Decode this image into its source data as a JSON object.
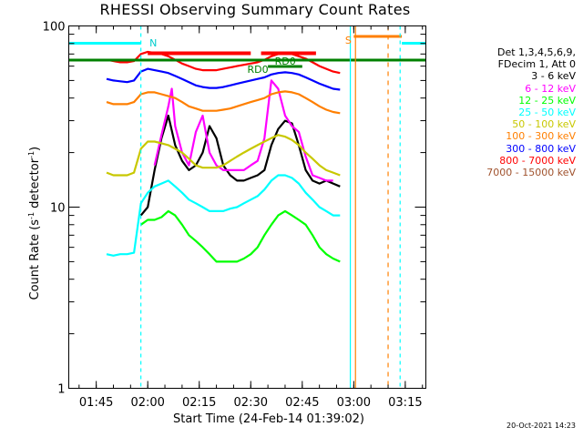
{
  "chart_data": {
    "type": "line",
    "title": "RHESSI Observing Summary Count Rates",
    "xlabel": "Start Time (24-Feb-14 01:39:02)",
    "ylabel": "Count Rate (s⁻¹ detector⁻¹)",
    "ylabel_parts": {
      "main": "Count Rate (s",
      "sup1": "-1",
      "mid": " detector",
      "sup2": "-1",
      "end": ")"
    },
    "y_scale": "log",
    "ylim": [
      1,
      100
    ],
    "xlim_minutes": [
      97,
      201
    ],
    "xticks": [
      {
        "min": 105,
        "label": "01:45"
      },
      {
        "min": 120,
        "label": "02:00"
      },
      {
        "min": 135,
        "label": "02:15"
      },
      {
        "min": 150,
        "label": "02:30"
      },
      {
        "min": 165,
        "label": "02:45"
      },
      {
        "min": 180,
        "label": "03:00"
      },
      {
        "min": 195,
        "label": "03:15"
      }
    ],
    "yticks": [
      {
        "value": 1,
        "label": "1"
      },
      {
        "value": 10,
        "label": "10"
      },
      {
        "value": 100,
        "label": "100"
      }
    ],
    "legend_header": [
      "Det 1,3,4,5,6,9,",
      "FDecim 1, Att 0"
    ],
    "series": [
      {
        "name": "3 - 6 keV",
        "color": "#000000",
        "points": [
          [
            118,
            9
          ],
          [
            120,
            10
          ],
          [
            122,
            16
          ],
          [
            124,
            24
          ],
          [
            126,
            32
          ],
          [
            128,
            22
          ],
          [
            130,
            18
          ],
          [
            132,
            16
          ],
          [
            134,
            17
          ],
          [
            136,
            20
          ],
          [
            138,
            28
          ],
          [
            140,
            24
          ],
          [
            142,
            17
          ],
          [
            144,
            15
          ],
          [
            146,
            14
          ],
          [
            148,
            14
          ],
          [
            150,
            14.5
          ],
          [
            152,
            15
          ],
          [
            154,
            16
          ],
          [
            156,
            22
          ],
          [
            158,
            27
          ],
          [
            160,
            30
          ],
          [
            162,
            29
          ],
          [
            164,
            22
          ],
          [
            166,
            16
          ],
          [
            168,
            14
          ],
          [
            170,
            13.5
          ],
          [
            172,
            14
          ],
          [
            174,
            13.5
          ],
          [
            176,
            13
          ]
        ]
      },
      {
        "name": "6 - 12 keV",
        "color": "#ff00ff",
        "points": [
          [
            122,
            17
          ],
          [
            124,
            25
          ],
          [
            126,
            36
          ],
          [
            127,
            45
          ],
          [
            128,
            28
          ],
          [
            130,
            20
          ],
          [
            132,
            17
          ],
          [
            134,
            26
          ],
          [
            136,
            32
          ],
          [
            138,
            20
          ],
          [
            140,
            17
          ],
          [
            142,
            16
          ],
          [
            144,
            16
          ],
          [
            146,
            16
          ],
          [
            148,
            16
          ],
          [
            150,
            17
          ],
          [
            152,
            18
          ],
          [
            154,
            24
          ],
          [
            156,
            50
          ],
          [
            158,
            45
          ],
          [
            160,
            32
          ],
          [
            162,
            28
          ],
          [
            164,
            26
          ],
          [
            166,
            19
          ],
          [
            168,
            15
          ],
          [
            170,
            14.5
          ],
          [
            172,
            14
          ],
          [
            174,
            14
          ]
        ]
      },
      {
        "name": "12 - 25 keV",
        "color": "#00ff00",
        "points": [
          [
            118,
            8
          ],
          [
            120,
            8.5
          ],
          [
            122,
            8.5
          ],
          [
            124,
            8.8
          ],
          [
            126,
            9.5
          ],
          [
            128,
            9
          ],
          [
            130,
            8
          ],
          [
            132,
            7
          ],
          [
            134,
            6.5
          ],
          [
            136,
            6
          ],
          [
            138,
            5.5
          ],
          [
            140,
            5
          ],
          [
            142,
            5
          ],
          [
            144,
            5
          ],
          [
            146,
            5
          ],
          [
            148,
            5.2
          ],
          [
            150,
            5.5
          ],
          [
            152,
            6
          ],
          [
            154,
            7
          ],
          [
            156,
            8
          ],
          [
            158,
            9
          ],
          [
            160,
            9.5
          ],
          [
            162,
            9
          ],
          [
            164,
            8.5
          ],
          [
            166,
            8
          ],
          [
            168,
            7
          ],
          [
            170,
            6
          ],
          [
            172,
            5.5
          ],
          [
            174,
            5.2
          ],
          [
            176,
            5
          ]
        ]
      },
      {
        "name": "25 - 50 keV",
        "color": "#00ffff",
        "points": [
          [
            108,
            5.5
          ],
          [
            110,
            5.4
          ],
          [
            112,
            5.5
          ],
          [
            114,
            5.5
          ],
          [
            116,
            5.6
          ],
          [
            118,
            10.5
          ],
          [
            120,
            12
          ],
          [
            122,
            13
          ],
          [
            124,
            13.5
          ],
          [
            126,
            14
          ],
          [
            128,
            13
          ],
          [
            130,
            12
          ],
          [
            132,
            11
          ],
          [
            134,
            10.5
          ],
          [
            136,
            10
          ],
          [
            138,
            9.5
          ],
          [
            140,
            9.5
          ],
          [
            142,
            9.5
          ],
          [
            144,
            9.8
          ],
          [
            146,
            10
          ],
          [
            148,
            10.5
          ],
          [
            150,
            11
          ],
          [
            152,
            11.5
          ],
          [
            154,
            12.5
          ],
          [
            156,
            14
          ],
          [
            158,
            15
          ],
          [
            160,
            15
          ],
          [
            162,
            14.5
          ],
          [
            164,
            13.5
          ],
          [
            166,
            12
          ],
          [
            168,
            11
          ],
          [
            170,
            10
          ],
          [
            172,
            9.5
          ],
          [
            174,
            9
          ],
          [
            176,
            9
          ]
        ]
      },
      {
        "name": "50 - 100 keV",
        "color": "#c8c800",
        "points": [
          [
            108,
            15.5
          ],
          [
            110,
            15
          ],
          [
            112,
            15
          ],
          [
            114,
            15
          ],
          [
            116,
            15.5
          ],
          [
            118,
            21
          ],
          [
            120,
            23
          ],
          [
            122,
            23
          ],
          [
            124,
            22.5
          ],
          [
            126,
            22
          ],
          [
            128,
            21
          ],
          [
            130,
            20
          ],
          [
            132,
            18.5
          ],
          [
            134,
            17
          ],
          [
            136,
            16.5
          ],
          [
            138,
            16.5
          ],
          [
            140,
            16.5
          ],
          [
            142,
            17
          ],
          [
            144,
            18
          ],
          [
            146,
            19
          ],
          [
            148,
            20
          ],
          [
            150,
            21
          ],
          [
            152,
            22
          ],
          [
            154,
            23
          ],
          [
            156,
            24
          ],
          [
            158,
            25
          ],
          [
            160,
            24.5
          ],
          [
            162,
            23.5
          ],
          [
            164,
            22
          ],
          [
            166,
            20
          ],
          [
            168,
            18.5
          ],
          [
            170,
            17
          ],
          [
            172,
            16
          ],
          [
            174,
            15.5
          ],
          [
            176,
            15
          ]
        ]
      },
      {
        "name": "100 - 300 keV",
        "color": "#ff7f00",
        "points": [
          [
            108,
            38
          ],
          [
            110,
            37
          ],
          [
            112,
            37
          ],
          [
            114,
            37
          ],
          [
            116,
            38
          ],
          [
            118,
            42
          ],
          [
            120,
            43
          ],
          [
            122,
            43
          ],
          [
            124,
            42
          ],
          [
            126,
            41
          ],
          [
            128,
            40
          ],
          [
            130,
            38
          ],
          [
            132,
            36
          ],
          [
            134,
            35
          ],
          [
            136,
            34
          ],
          [
            138,
            34
          ],
          [
            140,
            34
          ],
          [
            142,
            34.5
          ],
          [
            144,
            35
          ],
          [
            146,
            36
          ],
          [
            148,
            37
          ],
          [
            150,
            38
          ],
          [
            152,
            39
          ],
          [
            154,
            40
          ],
          [
            156,
            42
          ],
          [
            158,
            43
          ],
          [
            160,
            43.5
          ],
          [
            162,
            43
          ],
          [
            164,
            42
          ],
          [
            166,
            40
          ],
          [
            168,
            38
          ],
          [
            170,
            36
          ],
          [
            172,
            34.5
          ],
          [
            174,
            33.5
          ],
          [
            176,
            33
          ]
        ]
      },
      {
        "name": "300 - 800 keV",
        "color": "#0000ff",
        "points": [
          [
            108,
            51
          ],
          [
            110,
            50
          ],
          [
            112,
            49.5
          ],
          [
            114,
            49
          ],
          [
            116,
            50
          ],
          [
            118,
            56
          ],
          [
            120,
            58
          ],
          [
            122,
            57
          ],
          [
            124,
            56
          ],
          [
            126,
            55
          ],
          [
            128,
            53
          ],
          [
            130,
            51
          ],
          [
            132,
            49
          ],
          [
            134,
            47
          ],
          [
            136,
            46
          ],
          [
            138,
            45.5
          ],
          [
            140,
            45.5
          ],
          [
            142,
            46
          ],
          [
            144,
            47
          ],
          [
            146,
            48
          ],
          [
            148,
            49
          ],
          [
            150,
            50
          ],
          [
            152,
            51
          ],
          [
            154,
            52
          ],
          [
            156,
            54
          ],
          [
            158,
            55
          ],
          [
            160,
            55.5
          ],
          [
            162,
            55
          ],
          [
            164,
            54
          ],
          [
            166,
            52
          ],
          [
            168,
            50
          ],
          [
            170,
            48
          ],
          [
            172,
            46.5
          ],
          [
            174,
            45
          ],
          [
            176,
            44.5
          ]
        ]
      },
      {
        "name": "800 - 7000 keV",
        "color": "#ff0000",
        "points": [
          [
            108,
            65
          ],
          [
            110,
            64
          ],
          [
            112,
            63
          ],
          [
            114,
            63
          ],
          [
            116,
            64
          ],
          [
            118,
            70
          ],
          [
            120,
            72
          ],
          [
            122,
            71
          ],
          [
            124,
            70
          ],
          [
            126,
            68
          ],
          [
            128,
            65
          ],
          [
            130,
            62
          ],
          [
            132,
            60
          ],
          [
            134,
            58
          ],
          [
            136,
            57
          ],
          [
            138,
            57
          ],
          [
            140,
            57
          ],
          [
            142,
            58
          ],
          [
            144,
            59
          ],
          [
            146,
            60
          ],
          [
            148,
            61
          ],
          [
            150,
            62
          ],
          [
            152,
            63
          ],
          [
            154,
            65
          ],
          [
            156,
            68
          ],
          [
            158,
            70
          ],
          [
            160,
            71
          ],
          [
            162,
            70
          ],
          [
            164,
            68
          ],
          [
            166,
            66
          ],
          [
            168,
            63
          ],
          [
            170,
            60
          ],
          [
            172,
            58
          ],
          [
            174,
            56
          ],
          [
            176,
            55
          ]
        ]
      },
      {
        "name": "7000 - 15000 keV",
        "color": "#a0522d",
        "points": []
      }
    ],
    "annotations": [
      {
        "text": "N",
        "color": "#00cccc",
        "x_min": 120.5,
        "y": 77
      },
      {
        "text": "RD0",
        "color": "#008000",
        "x_min": 149,
        "y": 55
      },
      {
        "text": "RD0",
        "color": "#008000",
        "x_min": 157,
        "y": 61
      },
      {
        "text": "S",
        "color": "#ff7f00",
        "x_min": 177.5,
        "y": 80
      }
    ]
  },
  "footer_date": "20-Oct-2021 14:23"
}
